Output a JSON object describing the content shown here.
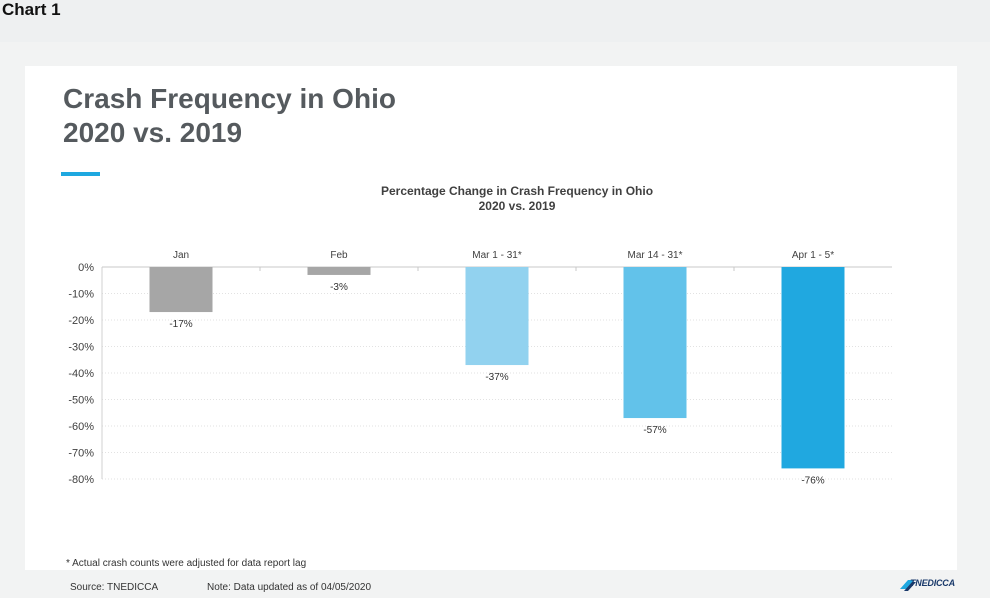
{
  "page": {
    "chart_label": "Chart 1",
    "headline_line1": "Crash Frequency in Ohio",
    "headline_line2": "2020 vs. 2019",
    "footnote": "* Actual crash counts were adjusted for data report lag",
    "source": "Source: TNEDICCA",
    "note": "Note: Data updated as of 04/05/2020",
    "logo_text": "TNEDICCA"
  },
  "colors": {
    "accent": "#1ea8e0",
    "bar_colors": [
      "#a6a6a6",
      "#a6a6a6",
      "#92d2ef",
      "#62c2ea",
      "#20a8e0"
    ]
  },
  "chart_data": {
    "type": "bar",
    "title_line1": "Percentage Change in Crash Frequency in Ohio",
    "title_line2": "2020 vs. 2019",
    "categories": [
      "Jan",
      "Feb",
      "Mar 1 - 31*",
      "Mar 14 - 31*",
      "Apr 1 - 5*"
    ],
    "values": [
      -17,
      -3,
      -37,
      -57,
      -76
    ],
    "data_labels": [
      "-17%",
      "-3%",
      "-37%",
      "-57%",
      "-76%"
    ],
    "ylim": [
      -80,
      0
    ],
    "yticks": [
      0,
      -10,
      -20,
      -30,
      -40,
      -50,
      -60,
      -70,
      -80
    ],
    "ytick_labels": [
      "0%",
      "-10%",
      "-20%",
      "-30%",
      "-40%",
      "-50%",
      "-60%",
      "-70%",
      "-80%"
    ],
    "xlabel": "",
    "ylabel": "",
    "grid": true,
    "category_labels_position": "top"
  }
}
